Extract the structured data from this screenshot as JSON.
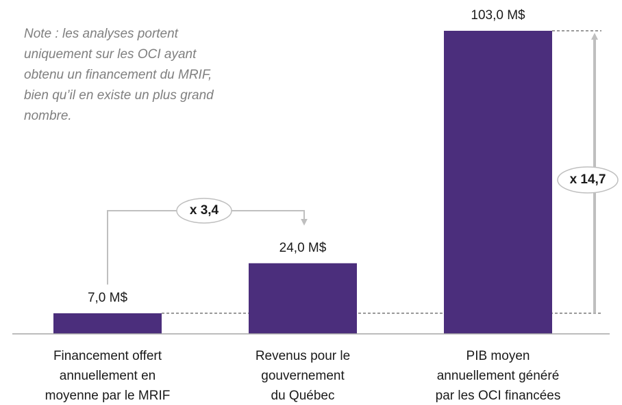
{
  "chart_data": {
    "type": "bar",
    "categories": [
      [
        "Financement offert",
        "annuellement en",
        "moyenne par le MRIF"
      ],
      [
        "Revenus pour le",
        "gouvernement",
        "du Québec"
      ],
      [
        "PIB moyen",
        "annuellement généré",
        "par les OCI financées"
      ]
    ],
    "values": [
      7.0,
      24.0,
      103.0
    ],
    "value_labels": [
      "7,0 M$",
      "24,0 M$",
      "103,0 M$"
    ],
    "color": "#4b2e7c",
    "note": [
      "Note : les analyses portent",
      "uniquement sur les OCI ayant",
      "obtenu un financement du MRIF,",
      "bien qu’il en existe un plus grand",
      "nombre."
    ],
    "annotations": [
      "x 3,4",
      "x 14,7"
    ]
  }
}
